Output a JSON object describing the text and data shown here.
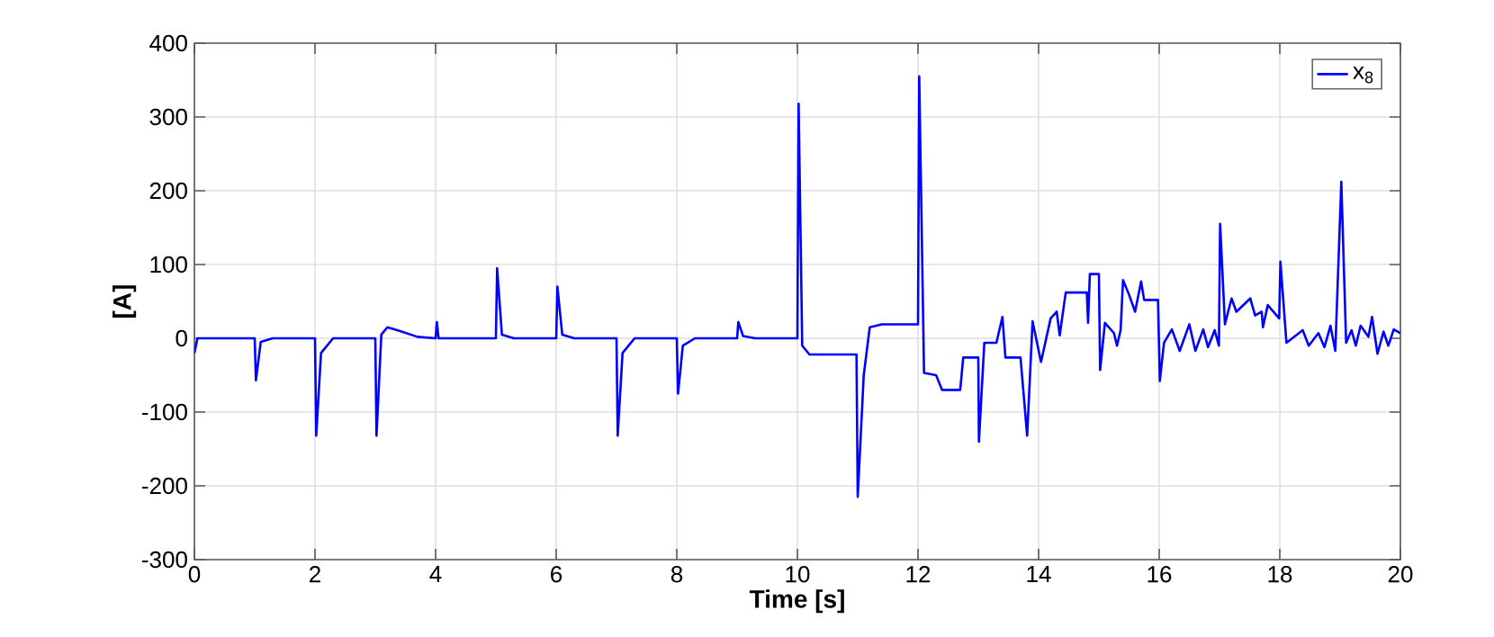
{
  "chart_data": {
    "type": "line",
    "xlabel": "Time [s]",
    "ylabel": "[A]",
    "xlim": [
      0,
      20
    ],
    "xticks": [
      0,
      2,
      4,
      6,
      8,
      10,
      12,
      14,
      16,
      18,
      20
    ],
    "ylim": [
      -300,
      400
    ],
    "yticks": [
      -300,
      -200,
      -100,
      0,
      100,
      200,
      300,
      400
    ],
    "grid": true,
    "legend": "top right",
    "line_style": "solid",
    "marker": "none",
    "series": [
      {
        "name": "x$_{8}$",
        "color": "#0000ff",
        "x": [
          0,
          0.05,
          1,
          1.02,
          1.1,
          1.3,
          2,
          2.02,
          2.1,
          2.3,
          3,
          3.02,
          3.1,
          3.2,
          3.4,
          3.7,
          4,
          4.02,
          4.05,
          5,
          5.02,
          5.1,
          5.3,
          6,
          6.02,
          6.1,
          6.3,
          7,
          7.02,
          7.1,
          7.3,
          8,
          8.02,
          8.1,
          8.3,
          9,
          9.02,
          9.1,
          9.3,
          10,
          10.02,
          10.08,
          10.2,
          10.98,
          11,
          11.1,
          11.2,
          11.4,
          12,
          12.02,
          12.1,
          12.3,
          12.4,
          12.7,
          12.75,
          13.0,
          13.01,
          13.1,
          13.3,
          13.4,
          13.45,
          13.7,
          13.81,
          13.9,
          14.04,
          14.2,
          14.3,
          14.35,
          14.45,
          14.8,
          14.82,
          14.85,
          15.0,
          15.02,
          15.1,
          15.25,
          15.3,
          15.36,
          15.4,
          15.5,
          15.6,
          15.7,
          15.75,
          15.98,
          16.01,
          16.08,
          16.21,
          16.34,
          16.5,
          16.6,
          16.73,
          16.81,
          16.92,
          16.99,
          17.01,
          17.09,
          17.2,
          17.28,
          17.51,
          17.59,
          17.7,
          17.72,
          17.8,
          17.99,
          18.01,
          18.11,
          18.38,
          18.48,
          18.64,
          18.74,
          18.84,
          18.92,
          19.02,
          19.1,
          19.19,
          19.26,
          19.34,
          19.47,
          19.53,
          19.62,
          19.72,
          19.8,
          19.89,
          20
        ],
        "values": [
          -20,
          0,
          0,
          -57,
          -5,
          0,
          0,
          -132,
          -20,
          0,
          0,
          -132,
          5,
          15,
          10,
          2,
          0,
          22,
          0,
          0,
          95,
          5,
          0,
          0,
          70,
          5,
          0,
          0,
          -132,
          -20,
          0,
          0,
          -75,
          -10,
          0,
          0,
          22,
          3,
          0,
          0,
          318,
          -10,
          -22,
          -22,
          -215,
          -50,
          15,
          19,
          19,
          355,
          -47,
          -50,
          -70,
          -70,
          -26,
          -26,
          -140,
          -6,
          -6,
          29,
          -26,
          -26,
          -132,
          23,
          -32,
          27,
          36,
          4,
          62,
          62,
          21,
          87,
          87,
          -43,
          21,
          7,
          -10,
          11,
          79,
          59,
          36,
          77,
          52,
          52,
          -58,
          -6,
          12,
          -17,
          19,
          -17,
          12,
          -12,
          11,
          -10,
          155,
          19,
          54,
          36,
          54,
          31,
          36,
          15,
          45,
          27,
          104,
          -6,
          11,
          -10,
          7,
          -12,
          17,
          -17,
          212,
          -6,
          11,
          -10,
          17,
          2,
          29,
          -21,
          9,
          -10,
          12,
          7
        ]
      }
    ]
  }
}
